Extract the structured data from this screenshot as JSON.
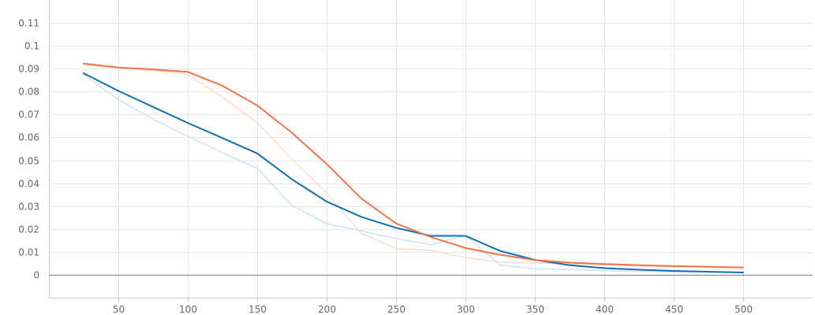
{
  "chart_data": {
    "type": "line",
    "title": "",
    "xlabel": "",
    "ylabel": "",
    "xlim": [
      0,
      550
    ],
    "ylim": [
      -0.01,
      0.12
    ],
    "x_ticks": [
      50,
      100,
      150,
      200,
      250,
      300,
      350,
      400,
      450,
      500
    ],
    "x_tick_labels": [
      "50",
      "100",
      "150",
      "200",
      "250",
      "300",
      "350",
      "400",
      "450",
      "500"
    ],
    "y_ticks": [
      0,
      0.01,
      0.02,
      0.03,
      0.04,
      0.05,
      0.06,
      0.07,
      0.08,
      0.09,
      0.1,
      0.11
    ],
    "y_tick_labels": [
      "0",
      "0.01",
      "0.02",
      "0.03",
      "0.04",
      "0.05",
      "0.06",
      "0.07",
      "0.08",
      "0.09",
      "0.1",
      "0.11"
    ],
    "grid": true,
    "legend": "none",
    "series": [
      {
        "color": "#c9e3f1",
        "width": 1.5,
        "x": [
          25,
          50,
          75,
          100,
          125,
          150,
          175,
          200,
          225,
          250,
          275,
          300,
          325,
          350,
          375,
          400,
          425,
          450,
          475,
          500
        ],
        "y": [
          0.0875,
          0.0765,
          0.068,
          0.0605,
          0.0533,
          0.0465,
          0.0303,
          0.0223,
          0.0192,
          0.0158,
          0.0131,
          0.0172,
          0.0042,
          0.0026,
          0.0022,
          0.0018,
          0.0015,
          0.0013,
          0.0012,
          0.001
        ]
      },
      {
        "color": "#fcd9cc",
        "width": 1.5,
        "x": [
          25,
          50,
          75,
          100,
          125,
          150,
          175,
          200,
          225,
          250,
          275,
          300,
          325,
          350,
          375,
          400,
          425,
          450,
          475,
          500
        ],
        "y": [
          0.0918,
          0.0903,
          0.0893,
          0.0875,
          0.0775,
          0.0665,
          0.0505,
          0.0358,
          0.018,
          0.0115,
          0.0106,
          0.0075,
          0.0056,
          0.0052,
          0.0048,
          0.0043,
          0.0039,
          0.0036,
          0.0033,
          0.003
        ]
      },
      {
        "color": "#0f71b1",
        "width": 2,
        "x": [
          25,
          50,
          75,
          100,
          125,
          150,
          175,
          200,
          225,
          250,
          275,
          300,
          325,
          350,
          375,
          400,
          425,
          450,
          475,
          500
        ],
        "y": [
          0.088,
          0.0803,
          0.0733,
          0.0663,
          0.0597,
          0.053,
          0.0417,
          0.032,
          0.0253,
          0.0205,
          0.017,
          0.017,
          0.0104,
          0.0065,
          0.0042,
          0.0029,
          0.0022,
          0.0017,
          0.0013,
          0.001
        ]
      },
      {
        "color": "#f2734a",
        "width": 2,
        "x": [
          25,
          50,
          75,
          100,
          125,
          150,
          175,
          200,
          225,
          250,
          275,
          300,
          325,
          350,
          375,
          400,
          425,
          450,
          475,
          500
        ],
        "y": [
          0.0922,
          0.0905,
          0.0897,
          0.0886,
          0.0825,
          0.074,
          0.062,
          0.0484,
          0.0333,
          0.0224,
          0.0165,
          0.0117,
          0.0087,
          0.0064,
          0.0053,
          0.0047,
          0.0042,
          0.0038,
          0.0035,
          0.0032
        ]
      }
    ]
  }
}
